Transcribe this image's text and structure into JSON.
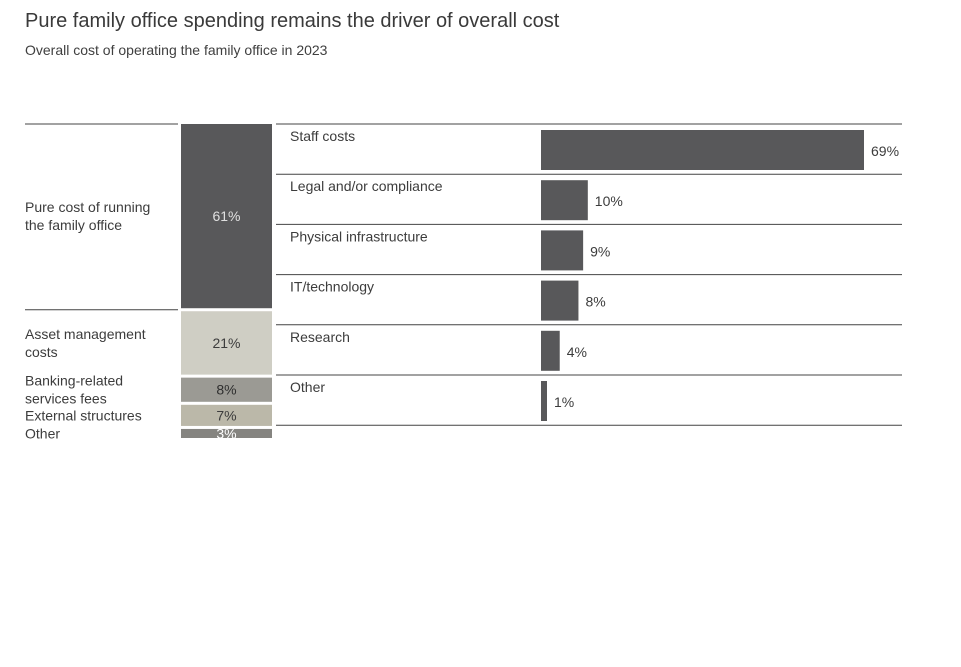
{
  "title": "Pure family office spending remains the driver of overall cost",
  "subtitle": "Overall cost of operating the family office in 2023",
  "chart_data": [
    {
      "type": "stacked-bar",
      "categories": [
        "Pure cost of running the family office",
        "Asset management costs",
        "Banking-related services fees",
        "External structures",
        "Other"
      ],
      "values": [
        61,
        21,
        8,
        7,
        3
      ],
      "labels": [
        "61%",
        "21%",
        "8%",
        "7%",
        "3%"
      ],
      "colors": [
        "#58585a",
        "#cfcec4",
        "#9b9a94",
        "#bbb8a9",
        "#858480"
      ],
      "label_colors": [
        "#e0e0e0",
        "#3c3c3c",
        "#2f2f2f",
        "#3c3c3c",
        "#ffffff"
      ]
    },
    {
      "type": "bar",
      "orientation": "horizontal",
      "categories": [
        "Staff costs",
        "Legal and/or compliance",
        "Physical infrastructure",
        "IT/technology",
        "Research",
        "Other"
      ],
      "values": [
        69,
        10,
        9,
        8,
        4,
        1
      ],
      "labels": [
        "69%",
        "10%",
        "9%",
        "8%",
        "4%",
        "1%"
      ],
      "color": "#58585a"
    }
  ]
}
